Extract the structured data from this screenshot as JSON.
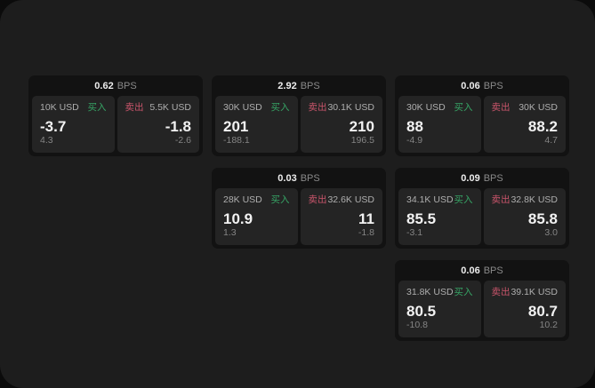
{
  "labels": {
    "buy": "买入",
    "sell": "卖出",
    "bps_unit": "BPS"
  },
  "colors": {
    "buy": "#36a465",
    "sell": "#c9556b",
    "panel_background": "#1d1d1d",
    "card_background": "#121212",
    "tile_background": "#242424"
  },
  "cards": [
    {
      "bps": "0.62",
      "buy": {
        "size": "10K USD",
        "price": "-3.7",
        "change": "4.3"
      },
      "sell": {
        "size": "5.5K USD",
        "price": "-1.8",
        "change": "-2.6"
      }
    },
    {
      "bps": "2.92",
      "buy": {
        "size": "30K USD",
        "price": "201",
        "change": "-188.1"
      },
      "sell": {
        "size": "30.1K USD",
        "price": "210",
        "change": "196.5"
      }
    },
    {
      "bps": "0.06",
      "buy": {
        "size": "30K USD",
        "price": "88",
        "change": "-4.9"
      },
      "sell": {
        "size": "30K USD",
        "price": "88.2",
        "change": "4.7"
      }
    },
    {
      "bps": "0.03",
      "buy": {
        "size": "28K USD",
        "price": "10.9",
        "change": "1.3"
      },
      "sell": {
        "size": "32.6K USD",
        "price": "11",
        "change": "-1.8"
      }
    },
    {
      "bps": "0.09",
      "buy": {
        "size": "34.1K USD",
        "price": "85.5",
        "change": "-3.1"
      },
      "sell": {
        "size": "32.8K USD",
        "price": "85.8",
        "change": "3.0"
      }
    },
    {
      "bps": "0.06",
      "buy": {
        "size": "31.8K USD",
        "price": "80.5",
        "change": "-10.8"
      },
      "sell": {
        "size": "39.1K USD",
        "price": "80.7",
        "change": "10.2"
      }
    }
  ]
}
